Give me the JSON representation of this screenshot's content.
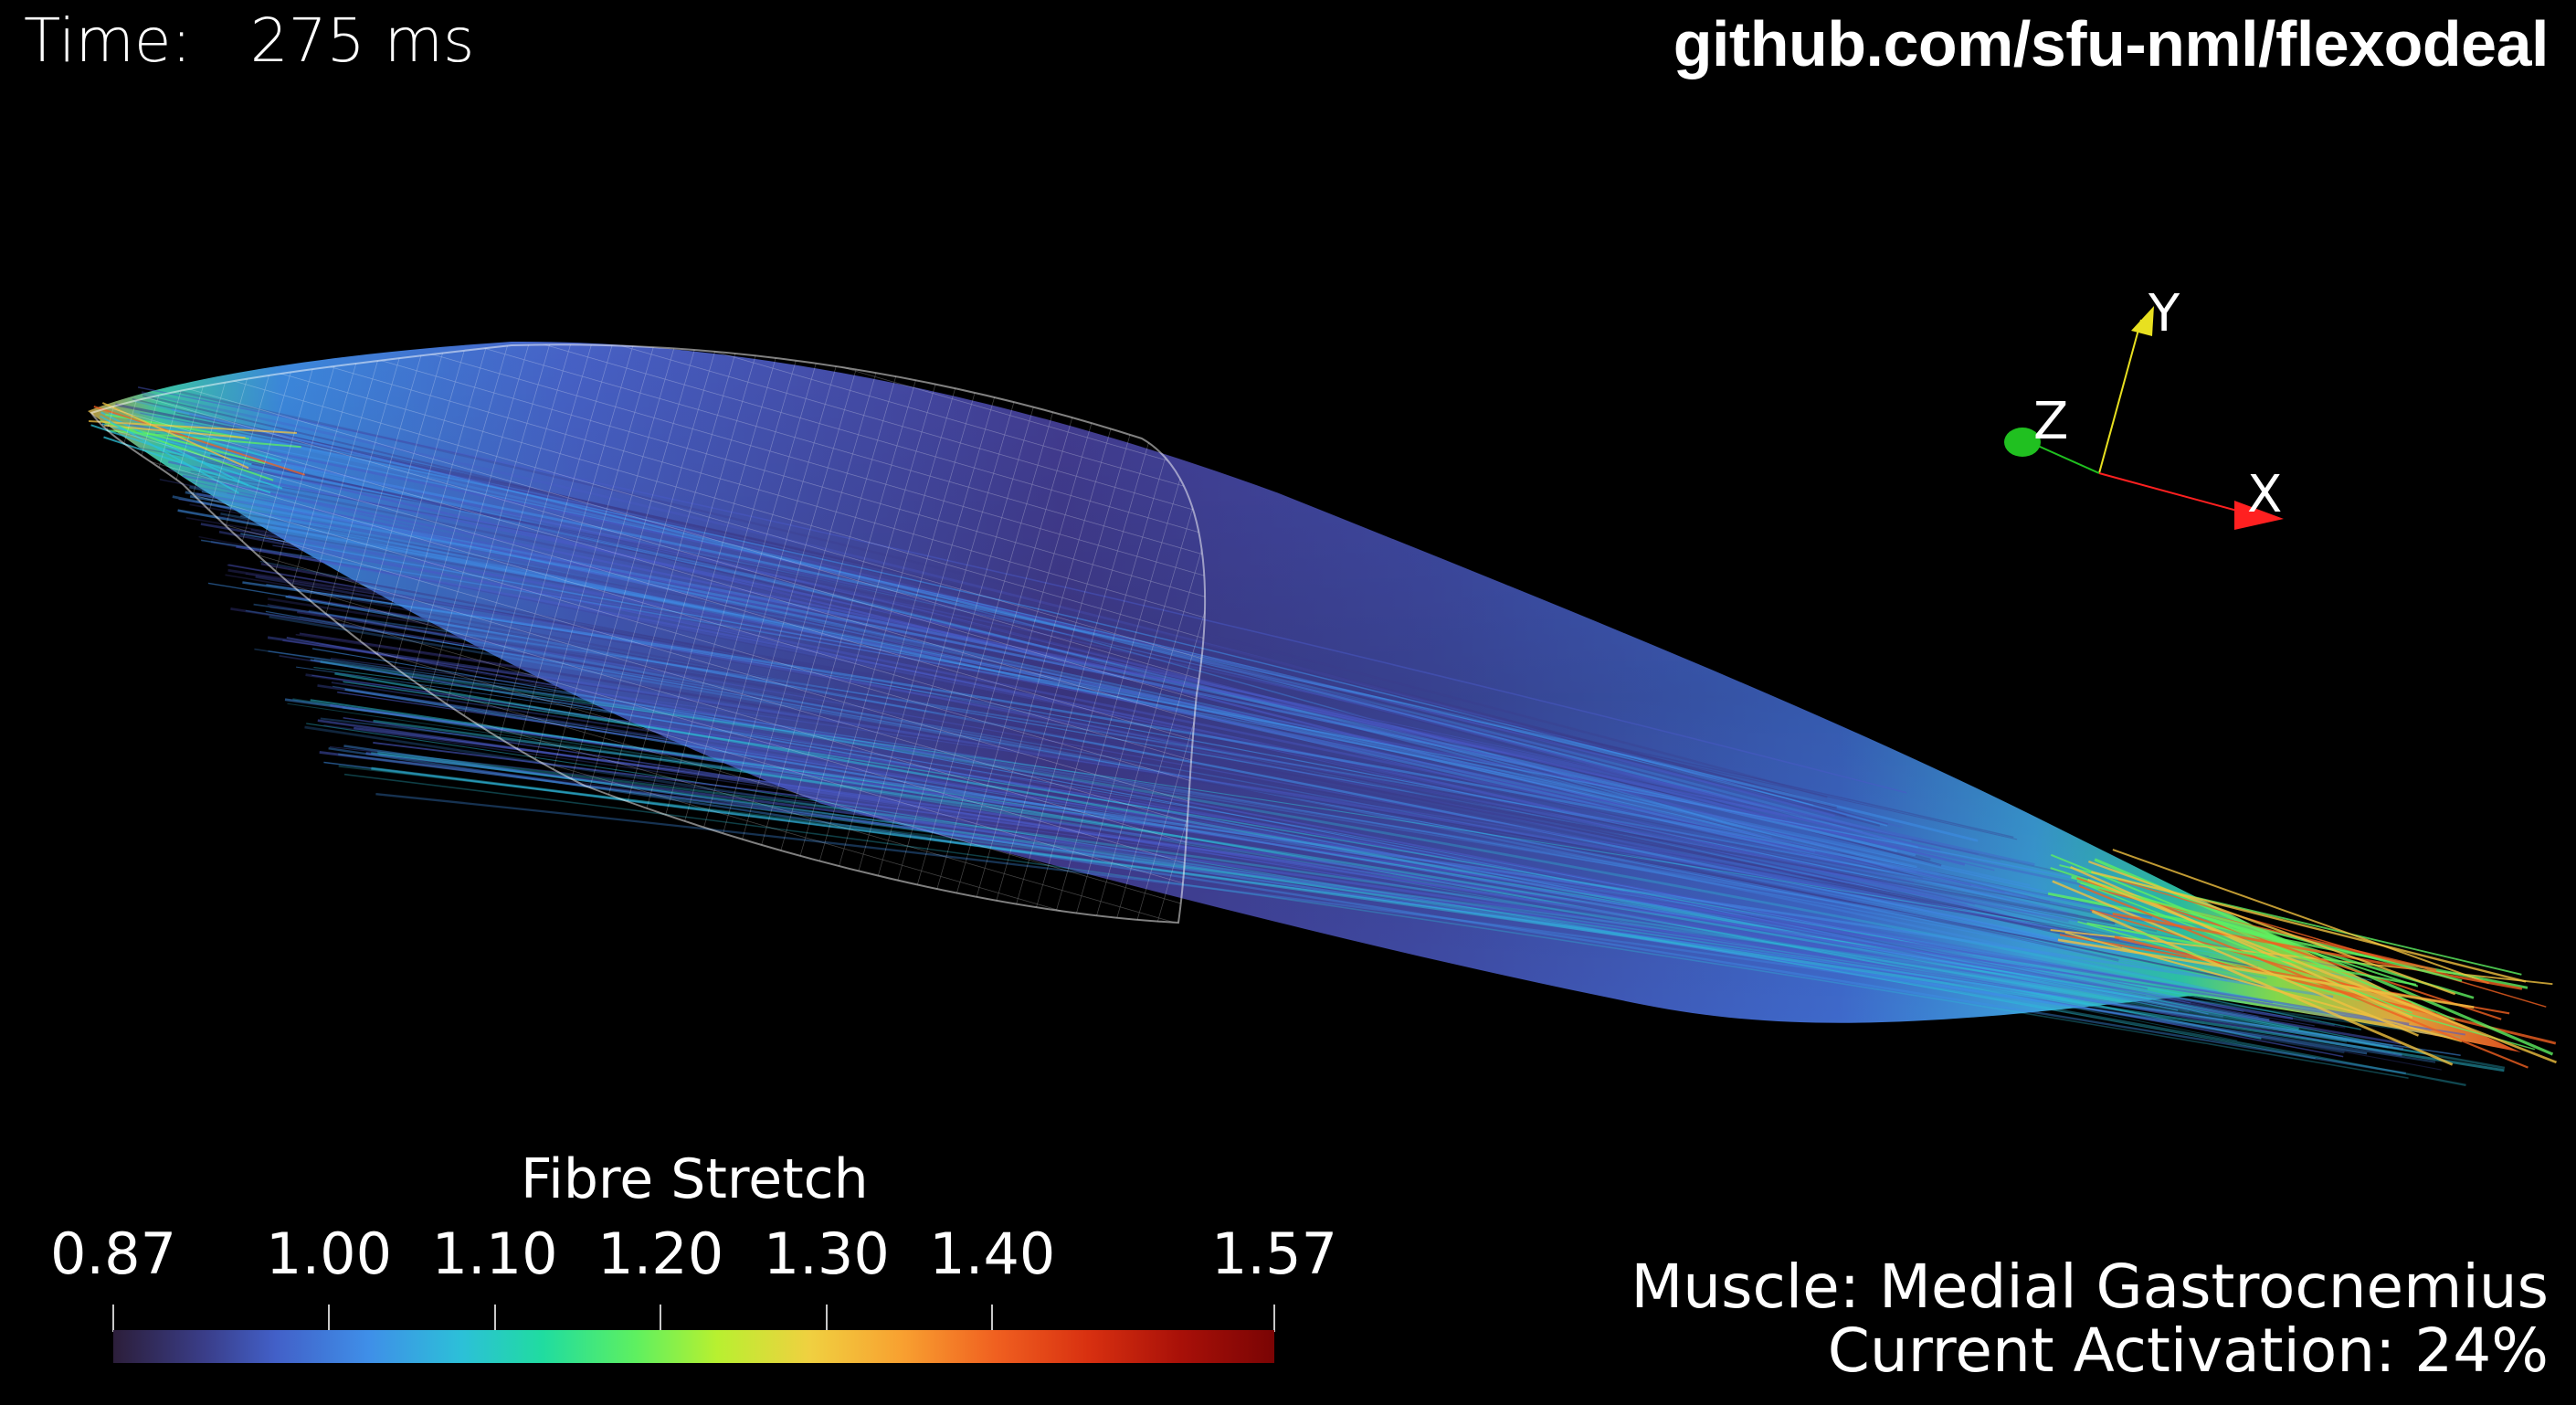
{
  "header": {
    "time_label": "Time:",
    "time_value": "275 ms",
    "repo_link": "github.com/sfu-nml/flexodeal"
  },
  "orientation_axes": {
    "x_label": "X",
    "y_label": "Y",
    "z_label": "Z",
    "x_color": "#ff2020",
    "y_color": "#e8e020",
    "z_color": "#20c020"
  },
  "colorbar": {
    "title": "Fibre Stretch",
    "min": 0.87,
    "max": 1.57,
    "ticks": [
      {
        "label": "0.87",
        "value": 0.87
      },
      {
        "label": "1.00",
        "value": 1.0
      },
      {
        "label": "1.10",
        "value": 1.1
      },
      {
        "label": "1.20",
        "value": 1.2
      },
      {
        "label": "1.30",
        "value": 1.3
      },
      {
        "label": "1.40",
        "value": 1.4
      },
      {
        "label": "1.57",
        "value": 1.57
      }
    ],
    "colors": [
      "#2c1e3a",
      "#4260c8",
      "#2cc0d8",
      "#5ef060",
      "#f0d040",
      "#f06020",
      "#7a0404"
    ]
  },
  "info": {
    "muscle": "Muscle: Medial Gastrocnemius",
    "activation": "Current Activation: 24%"
  },
  "scene": {
    "object": "muscle fibre streamlines with wireframe mesh",
    "background": "#000000",
    "fibre_colors": [
      "#3a3a8a",
      "#4a5ac8",
      "#3f8fe8",
      "#2cc0d8",
      "#5ef060",
      "#f0c040",
      "#f06020"
    ]
  }
}
